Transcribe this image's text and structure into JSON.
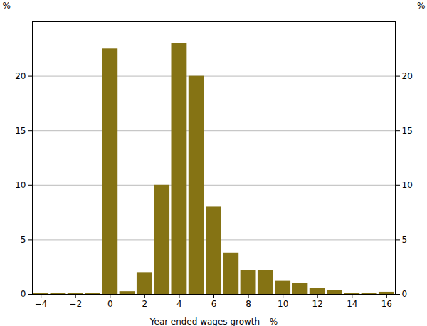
{
  "chart_data": {
    "type": "bar",
    "x": [
      -4,
      -3,
      -2,
      -1,
      0,
      1,
      2,
      3,
      4,
      5,
      6,
      7,
      8,
      9,
      10,
      11,
      12,
      13,
      14,
      15,
      16
    ],
    "values": [
      0.08,
      0.08,
      0.08,
      0.08,
      22.5,
      0.25,
      2.0,
      10.0,
      23.0,
      20.0,
      8.0,
      3.8,
      2.2,
      2.2,
      1.2,
      1.0,
      0.55,
      0.35,
      0.12,
      0.08,
      0.2
    ],
    "color": "#857314",
    "xlabel": "Year-ended wages growth – %",
    "ylabel": "%",
    "y2label": "%",
    "xlim": [
      -4.5,
      16.5
    ],
    "xticks": [
      -4,
      -2,
      0,
      2,
      4,
      6,
      8,
      10,
      12,
      14,
      16
    ],
    "ylim": [
      0,
      25
    ],
    "yticks": [
      0,
      5,
      10,
      15,
      20
    ],
    "y2lim": [
      0,
      25
    ],
    "y2ticks": [
      0,
      5,
      10,
      15,
      20
    ],
    "grid": true
  }
}
